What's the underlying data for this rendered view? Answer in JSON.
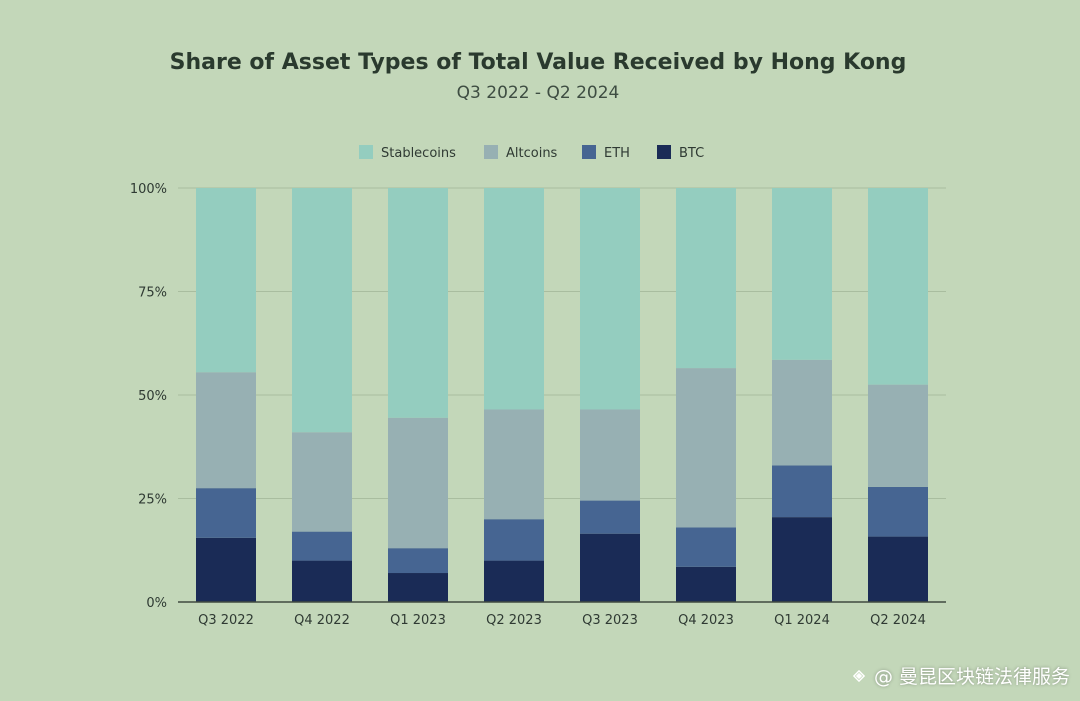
{
  "chart_data": {
    "type": "bar",
    "stacked": true,
    "title": "Share of Asset Types of Total Value Received by Hong Kong",
    "subtitle": "Q3 2022 - Q2 2024",
    "categories": [
      "Q3 2022",
      "Q4 2022",
      "Q1 2023",
      "Q2 2023",
      "Q3 2023",
      "Q4 2023",
      "Q1 2024",
      "Q2 2024"
    ],
    "series": [
      {
        "name": "BTC",
        "color": "#1a2b56",
        "values": [
          15.5,
          10,
          7,
          10,
          16.5,
          8.5,
          20.5,
          15.8
        ]
      },
      {
        "name": "ETH",
        "color": "#466592",
        "values": [
          12,
          7,
          6,
          10,
          8,
          9.5,
          12.5,
          12
        ]
      },
      {
        "name": "Altcoins",
        "color": "#97b0b3",
        "values": [
          28,
          24,
          31.5,
          26.5,
          22,
          38.5,
          25.5,
          24.7
        ]
      },
      {
        "name": "Stablecoins",
        "color": "#94cdbf",
        "values": [
          44.5,
          59,
          55.5,
          53.5,
          53.5,
          43.5,
          41.5,
          47.5
        ]
      }
    ],
    "legend_order": [
      "Stablecoins",
      "Altcoins",
      "ETH",
      "BTC"
    ],
    "legend_position": "top",
    "yticks": [
      "0%",
      "25%",
      "50%",
      "75%",
      "100%"
    ],
    "ylim": [
      0,
      100
    ],
    "grid": true
  },
  "watermark": {
    "text": "@ 曼昆区块链法律服务",
    "icon": "binance-square-icon"
  }
}
